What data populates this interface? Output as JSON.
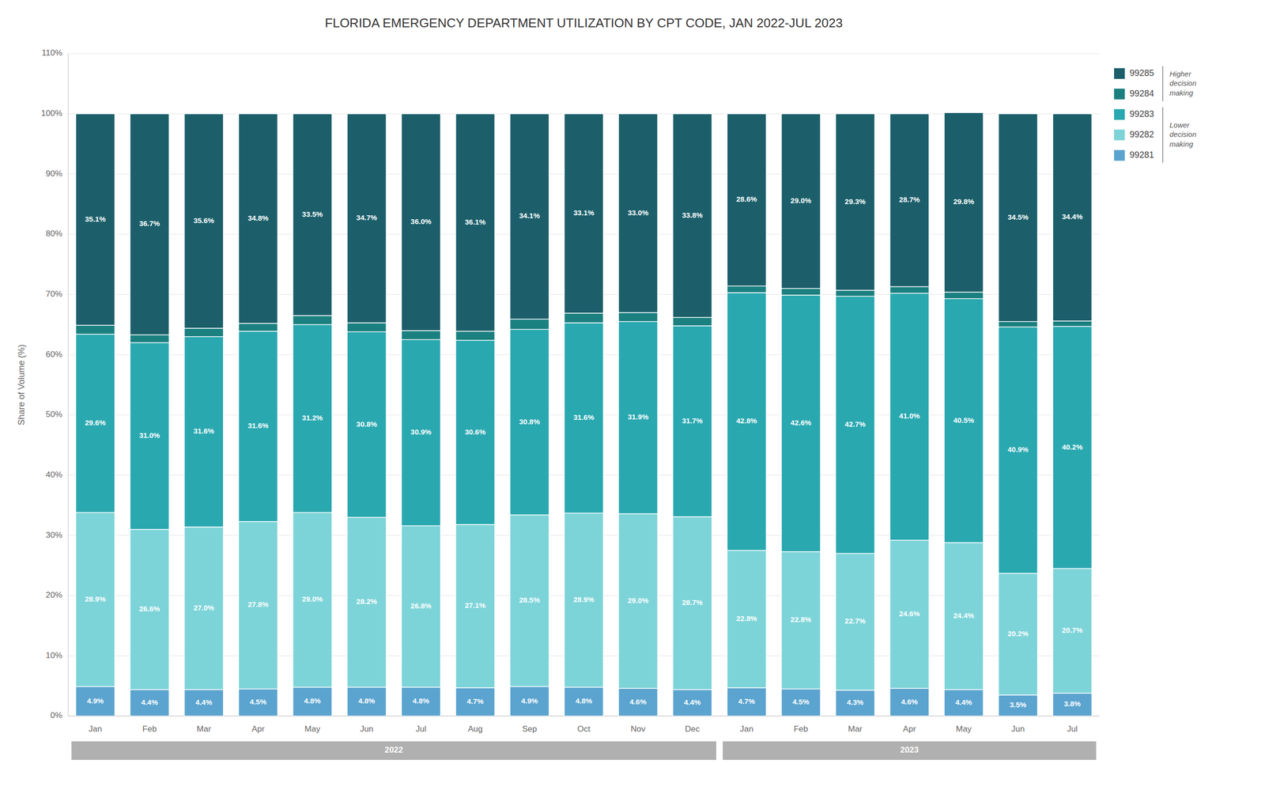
{
  "chart_data": {
    "type": "bar",
    "stacked": true,
    "title": "FLORIDA EMERGENCY DEPARTMENT UTILIZATION BY CPT CODE, JAN 2022-JUL 2023",
    "y_label": "Share of Volume (%)",
    "categories": [
      "Jan",
      "Feb",
      "Mar",
      "Apr",
      "May",
      "Jun",
      "Jul",
      "Aug",
      "Sep",
      "Oct",
      "Nov",
      "Dec",
      "Jan",
      "Feb",
      "Mar",
      "Apr",
      "May",
      "Jun",
      "Jul"
    ],
    "series": [
      {
        "name": "99281",
        "color": "#5ba4cf",
        "data_labels": true,
        "values": [
          4.9,
          4.4,
          4.4,
          4.5,
          4.8,
          4.8,
          4.8,
          4.7,
          4.9,
          4.8,
          4.6,
          4.4,
          4.7,
          4.5,
          4.3,
          4.6,
          4.4,
          3.5,
          3.8
        ],
        "value_labels": [
          "4.9%",
          "4.4%",
          "4.4%",
          "4.5%",
          "4.8%",
          "4.8%",
          "4.8%",
          "4.7%",
          "4.9%",
          "4.8%",
          "4.6%",
          "4.4%",
          "4.7%",
          "4.5%",
          "4.3%",
          "4.6%",
          "4.4%",
          "3.5%",
          "3.8%"
        ]
      },
      {
        "name": "99282",
        "color": "#7dd4d8",
        "data_labels": true,
        "values": [
          28.9,
          26.6,
          27.0,
          27.8,
          29.0,
          28.2,
          26.8,
          27.1,
          28.5,
          28.9,
          29.0,
          28.7,
          22.8,
          22.8,
          22.7,
          24.6,
          24.4,
          20.2,
          20.7
        ],
        "value_labels": [
          "28.9%",
          "26.6%",
          "27.0%",
          "27.8%",
          "29.0%",
          "28.2%",
          "26.8%",
          "27.1%",
          "28.5%",
          "28.9%",
          "29.0%",
          "28.7%",
          "22.8%",
          "22.8%",
          "22.7%",
          "24.6%",
          "24.4%",
          "20.2%",
          "20.7%"
        ]
      },
      {
        "name": "99283",
        "color": "#2aa8b0",
        "data_labels": true,
        "values": [
          29.6,
          31.0,
          31.6,
          31.6,
          31.2,
          30.8,
          30.9,
          30.6,
          30.8,
          31.6,
          31.9,
          31.7,
          42.8,
          42.6,
          42.7,
          41.0,
          40.5,
          40.9,
          40.2
        ],
        "value_labels": [
          "29.6%",
          "31.0%",
          "31.6%",
          "31.6%",
          "31.2%",
          "30.8%",
          "30.9%",
          "30.6%",
          "30.8%",
          "31.6%",
          "31.9%",
          "31.7%",
          "42.8%",
          "42.6%",
          "42.7%",
          "41.0%",
          "40.5%",
          "40.9%",
          "40.2%"
        ]
      },
      {
        "name": "99284",
        "color": "#1b8080",
        "data_labels": false,
        "values": [
          1.5,
          1.3,
          1.4,
          1.3,
          1.5,
          1.5,
          1.5,
          1.5,
          1.7,
          1.6,
          1.5,
          1.4,
          1.1,
          1.1,
          1.0,
          1.1,
          1.1,
          0.9,
          0.9
        ]
      },
      {
        "name": "99285",
        "color": "#1c5f6b",
        "data_labels": true,
        "values": [
          35.1,
          36.7,
          35.6,
          34.8,
          33.5,
          34.7,
          36.0,
          36.1,
          34.1,
          33.1,
          33.0,
          33.8,
          28.6,
          29.0,
          29.3,
          28.7,
          29.8,
          34.5,
          34.4
        ],
        "value_labels": [
          "35.1%",
          "36.7%",
          "35.6%",
          "34.8%",
          "33.5%",
          "34.7%",
          "36.0%",
          "36.1%",
          "34.1%",
          "33.1%",
          "33.0%",
          "33.8%",
          "28.6%",
          "29.0%",
          "29.3%",
          "28.7%",
          "29.8%",
          "34.5%",
          "34.4%"
        ]
      }
    ],
    "ylim": [
      0,
      110
    ],
    "yticks": [
      {
        "value": 0,
        "label": "0%"
      },
      {
        "value": 10,
        "label": "10%"
      },
      {
        "value": 20,
        "label": "20%"
      },
      {
        "value": 30,
        "label": "30%"
      },
      {
        "value": 40,
        "label": "40%"
      },
      {
        "value": 50,
        "label": "50%"
      },
      {
        "value": 60,
        "label": "60%"
      },
      {
        "value": 70,
        "label": "70%"
      },
      {
        "value": 80,
        "label": "80%"
      },
      {
        "value": 90,
        "label": "90%"
      },
      {
        "value": 100,
        "label": "100%"
      },
      {
        "value": 110,
        "label": "110%"
      }
    ],
    "grid": true,
    "legend": "right",
    "annotations": [
      {
        "text": "2022",
        "start": 0,
        "end": 11
      },
      {
        "text": "2023",
        "start": 12,
        "end": 18
      },
      {
        "text": "Higher\ndecision\nmaking",
        "series": [
          "99285",
          "99284"
        ]
      },
      {
        "text": "Lower\ndecision\nmaking",
        "series": [
          "99283",
          "99282",
          "99281"
        ]
      }
    ]
  }
}
